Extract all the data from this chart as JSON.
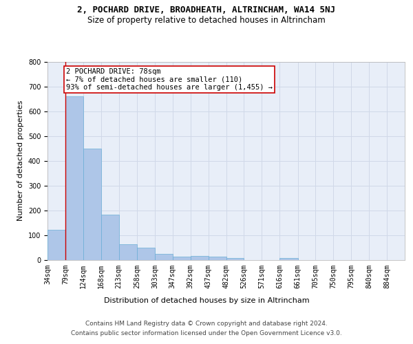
{
  "title": "2, POCHARD DRIVE, BROADHEATH, ALTRINCHAM, WA14 5NJ",
  "subtitle": "Size of property relative to detached houses in Altrincham",
  "xlabel": "Distribution of detached houses by size in Altrincham",
  "ylabel": "Number of detached properties",
  "footer_line1": "Contains HM Land Registry data © Crown copyright and database right 2024.",
  "footer_line2": "Contains public sector information licensed under the Open Government Licence v3.0.",
  "bar_edges": [
    34,
    79,
    124,
    168,
    213,
    258,
    303,
    347,
    392,
    437,
    482,
    526,
    571,
    616,
    661,
    705,
    750,
    795,
    840,
    884,
    929
  ],
  "bar_heights": [
    120,
    660,
    450,
    183,
    62,
    48,
    25,
    12,
    14,
    13,
    8,
    0,
    0,
    8,
    0,
    0,
    0,
    0,
    0,
    0
  ],
  "bar_color": "#aec6e8",
  "bar_edge_color": "#6aaed6",
  "grid_color": "#d0d8e8",
  "bg_color": "#e8eef8",
  "vline_x": 79,
  "vline_color": "#cc0000",
  "annotation_text": "2 POCHARD DRIVE: 78sqm\n← 7% of detached houses are smaller (110)\n93% of semi-detached houses are larger (1,455) →",
  "annotation_box_color": "#cc0000",
  "ylim": [
    0,
    800
  ],
  "yticks": [
    0,
    100,
    200,
    300,
    400,
    500,
    600,
    700,
    800
  ],
  "title_fontsize": 9,
  "subtitle_fontsize": 8.5,
  "axis_label_fontsize": 8,
  "tick_fontsize": 7,
  "annotation_fontsize": 7.5,
  "footer_fontsize": 6.5
}
